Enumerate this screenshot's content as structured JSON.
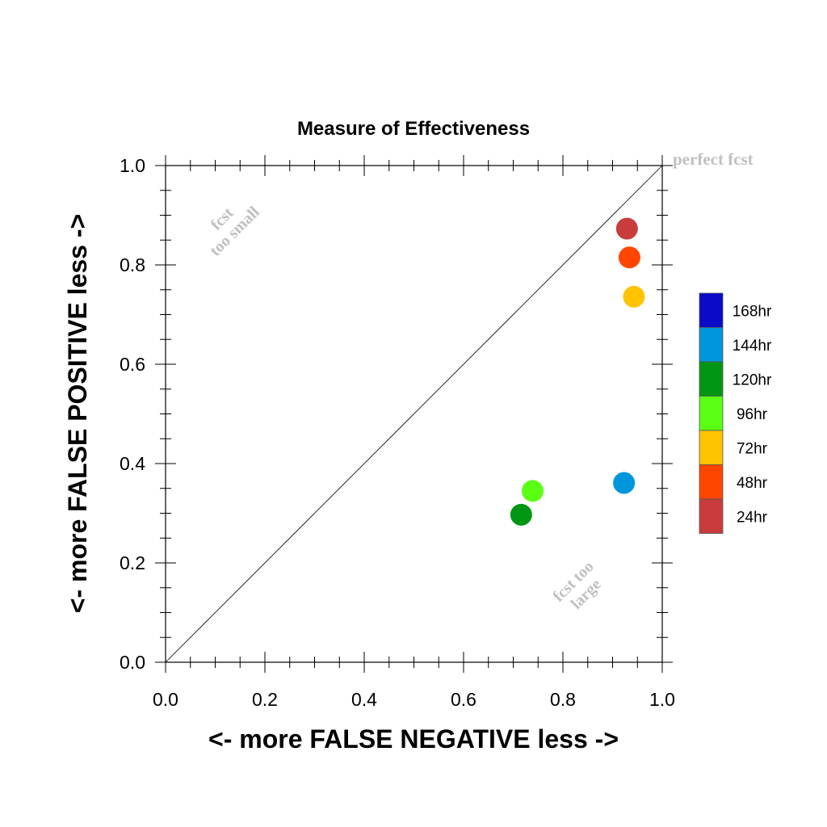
{
  "chart_data": {
    "type": "scatter",
    "title": "Measure of Effectiveness",
    "xlabel": "<- more   FALSE NEGATIVE   less ->",
    "ylabel": "<- more   FALSE POSITIVE   less ->",
    "xlim": [
      0.0,
      1.0
    ],
    "ylim": [
      0.0,
      1.0
    ],
    "x_ticks": [
      "0.0",
      "0.2",
      "0.4",
      "0.6",
      "0.8",
      "1.0"
    ],
    "y_ticks": [
      "0.0",
      "0.2",
      "0.4",
      "0.6",
      "0.8",
      "1.0"
    ],
    "grid": false,
    "reference_line": "diagonal y = x",
    "legend_placement": "right",
    "series": [
      {
        "name": "168hr",
        "color": "#0a0ac8",
        "points": []
      },
      {
        "name": "144hr",
        "color": "#0096dc",
        "points": [
          {
            "x": 0.923,
            "y": 0.361
          }
        ]
      },
      {
        "name": "120hr",
        "color": "#009614",
        "points": [
          {
            "x": 0.716,
            "y": 0.297
          }
        ]
      },
      {
        "name": "96hr",
        "color": "#5aff14",
        "points": [
          {
            "x": 0.739,
            "y": 0.345
          }
        ]
      },
      {
        "name": "72hr",
        "color": "#ffc300",
        "points": [
          {
            "x": 0.943,
            "y": 0.736
          }
        ]
      },
      {
        "name": "48hr",
        "color": "#ff4600",
        "points": [
          {
            "x": 0.934,
            "y": 0.815
          }
        ]
      },
      {
        "name": "24hr",
        "color": "#c83c3c",
        "points": [
          {
            "x": 0.929,
            "y": 0.873
          }
        ]
      }
    ],
    "annotations": {
      "top_right": "perfect fcst",
      "upper_left_line1": "fcst",
      "upper_left_line2": "too small",
      "lower_right_line1": "fcst too",
      "lower_right_line2": "large"
    }
  }
}
